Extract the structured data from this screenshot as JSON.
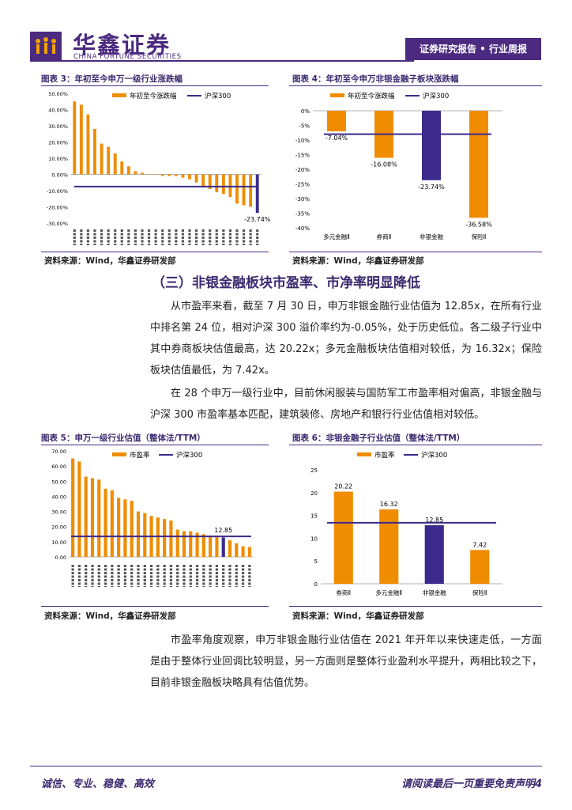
{
  "header": {
    "logo_cn": "华鑫证券",
    "logo_en": "CHINA FORTUNE SECURITIES",
    "tab_label": "证券研究报告 • 行业周报"
  },
  "figures": [
    {
      "title": "图表 3：年初至今申万一级行业涨跌幅",
      "source": "资料来源：Wind，华鑫证券研发部"
    },
    {
      "title": "图表 4：年初至今申万非银金融子板块涨跌幅",
      "source": "资料来源：Wind，华鑫证券研发部"
    },
    {
      "title": "图表 5：申万一级行业估值（整体法/TTM）",
      "source": "资料来源：Wind，华鑫证券研发部"
    },
    {
      "title": "图表 6：非银金融子行业估值（整体法/TTM）",
      "source": "资料来源：Wind，华鑫证券研发部"
    }
  ],
  "section_title": "（三）非银金融板块市盈率、市净率明显降低",
  "paragraphs": [
    "从市盈率来看，截至 7 月 30 日，申万非银金融行业估值为 12.85x，在所有行业中排名第 24 位，相对沪深 300 溢价率约为-0.05%，处于历史低位。各二级子行业中其中券商板块估值最高，达 20.22x；多元金融板块估值相对较低，为 16.32x；保险板块估值最低，为 7.42x。",
    "在 28 个申万一级行业中，目前休闲服装与国防军工市盈率相对偏高，非银金融与沪深 300 市盈率基本匹配，建筑装修、房地产和银行行业估值相对较低。",
    "市盈率角度观察，申万非银金融行业估值在 2021 年开年以来快速走低，一方面是由于整体行业回调比较明显，另一方面则是整体行业盈利水平提升，两相比较之下，目前非银金融板块略具有估值优势。"
  ],
  "footer": {
    "left": "诚信、专业、稳健、高效",
    "right": "请阅读最后一页重要免责声明4"
  },
  "colors": {
    "brand": "#4b2a7f",
    "bar": "#f08c00",
    "line": "#3b2a8c",
    "highlight": "#3b2a8c"
  },
  "chart_data": [
    {
      "type": "bar",
      "legend": [
        "年初至今涨跌幅",
        "沪深300"
      ],
      "yticks": [
        "50.00%",
        "40.00%",
        "30.00%",
        "20.00%",
        "10.00%",
        "0.00%",
        "-10.00%",
        "-20.00%",
        "-30.00%"
      ],
      "ylim": [
        -30,
        50
      ],
      "values": [
        45,
        43,
        37,
        28,
        19,
        17,
        13,
        8,
        5,
        2,
        1,
        0,
        0,
        -1,
        -1,
        -1,
        -2,
        -3,
        -5,
        -8,
        -9,
        -11,
        -12,
        -14,
        -18,
        -19,
        -20,
        -23.74
      ],
      "highlight_index": 27,
      "highlight_label": "-23.74%",
      "reference_line": {
        "name": "沪深300",
        "value": -7.5
      },
      "category_labels_rendered": "illegible"
    },
    {
      "type": "bar",
      "legend": [
        "年初至今涨跌幅",
        "沪深300"
      ],
      "categories": [
        "多元金融Ⅱ",
        "券商Ⅱ",
        "非银金融",
        "保险Ⅱ"
      ],
      "values": [
        -7.04,
        -16.08,
        -23.74,
        -36.58
      ],
      "labels": [
        "-7.04%",
        "-16.08%",
        "-23.74%",
        "-36.58%"
      ],
      "highlight_index": 2,
      "yticks": [
        "0%",
        "-5%",
        "-10%",
        "-15%",
        "-20%",
        "-25%",
        "-30%",
        "-35%",
        "-40%"
      ],
      "ylim": [
        -40,
        0
      ],
      "reference_line": {
        "name": "沪深300",
        "value": -8
      }
    },
    {
      "type": "bar",
      "legend": [
        "市盈率",
        "沪深300"
      ],
      "yticks": [
        "70.00",
        "60.00",
        "50.00",
        "40.00",
        "30.00",
        "20.00",
        "10.00",
        "0.00"
      ],
      "ylim": [
        0,
        70
      ],
      "values": [
        65,
        63,
        53,
        52,
        51,
        45,
        44,
        39,
        38,
        37,
        30,
        29,
        27,
        26,
        25,
        24,
        18,
        17,
        17,
        16,
        15,
        14,
        13,
        12.85,
        11,
        9,
        7,
        6.5
      ],
      "highlight_index": 23,
      "highlight_label": "12.85",
      "reference_line": {
        "name": "沪深300",
        "value": 13.5
      },
      "category_labels_rendered": "illegible"
    },
    {
      "type": "bar",
      "legend": [
        "市盈率",
        "沪深300"
      ],
      "categories": [
        "券商Ⅱ",
        "多元金融Ⅱ",
        "非银金融",
        "保险Ⅱ"
      ],
      "values": [
        20.22,
        16.32,
        12.85,
        7.42
      ],
      "labels": [
        "20.22",
        "16.32",
        "12.85",
        "7.42"
      ],
      "highlight_index": 2,
      "yticks": [
        "25",
        "20",
        "15",
        "10",
        "5",
        "0"
      ],
      "ylim": [
        0,
        25
      ],
      "reference_line": {
        "name": "沪深300",
        "value": 13.4
      }
    }
  ]
}
